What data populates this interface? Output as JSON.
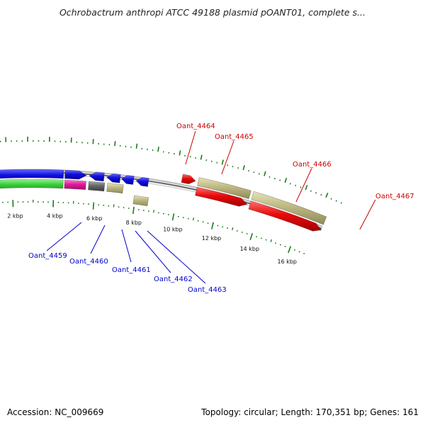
{
  "header": {
    "title": "Ochrobactrum anthropi ATCC 49188 plasmid pOANT01, complete s..."
  },
  "footer": {
    "accession": "Accession: NC_009669",
    "summary": "Topology: circular; Length: 170,351 bp; Genes: 161"
  },
  "scale_labels": [
    "2 kbp",
    "4 kbp",
    "6 kbp",
    "8 kbp",
    "10 kbp",
    "12 kbp",
    "14 kbp",
    "16 kbp"
  ],
  "gene_labels": {
    "reverse_strand": [
      "Oant_4459",
      "Oant_4460",
      "Oant_4461",
      "Oant_4462",
      "Oant_4463"
    ],
    "forward_strand": [
      "Oant_4464",
      "Oant_4465",
      "Oant_4466",
      "Oant_4467"
    ]
  },
  "colors": {
    "reverse_label": "#0000cc",
    "forward_label": "#cc0000",
    "backbone": "#8a8a8a",
    "tick": "#1e7a1e",
    "blue_feature": "#1010dd",
    "green_feature": "#33cc33",
    "magenta_feature": "#e01b9b",
    "gray_feature": "#666666",
    "khaki_feature": "#bdb882",
    "red_feature": "#e80a0a"
  }
}
